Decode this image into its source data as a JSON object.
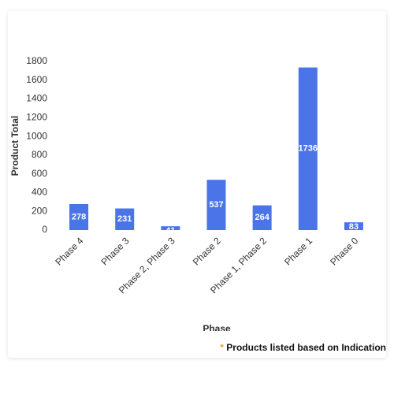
{
  "chart_data": {
    "type": "bar",
    "x_label": "Phase",
    "y_label": "Product Total",
    "categories": [
      "Phase 4",
      "Phase 3",
      "Phase 2, Phase 3",
      "Phase 2",
      "Phase 1, Phase 2",
      "Phase 1",
      "Phase 0"
    ],
    "values": [
      278,
      231,
      41,
      537,
      264,
      1736,
      83
    ],
    "color": "#4a74e8",
    "ylim": [
      0,
      1800
    ],
    "yticks": [
      0,
      200,
      400,
      600,
      800,
      1000,
      1200,
      1400,
      1600,
      1800
    ],
    "grid": false,
    "note_marker": "*",
    "note": "Products listed based on Indication"
  }
}
